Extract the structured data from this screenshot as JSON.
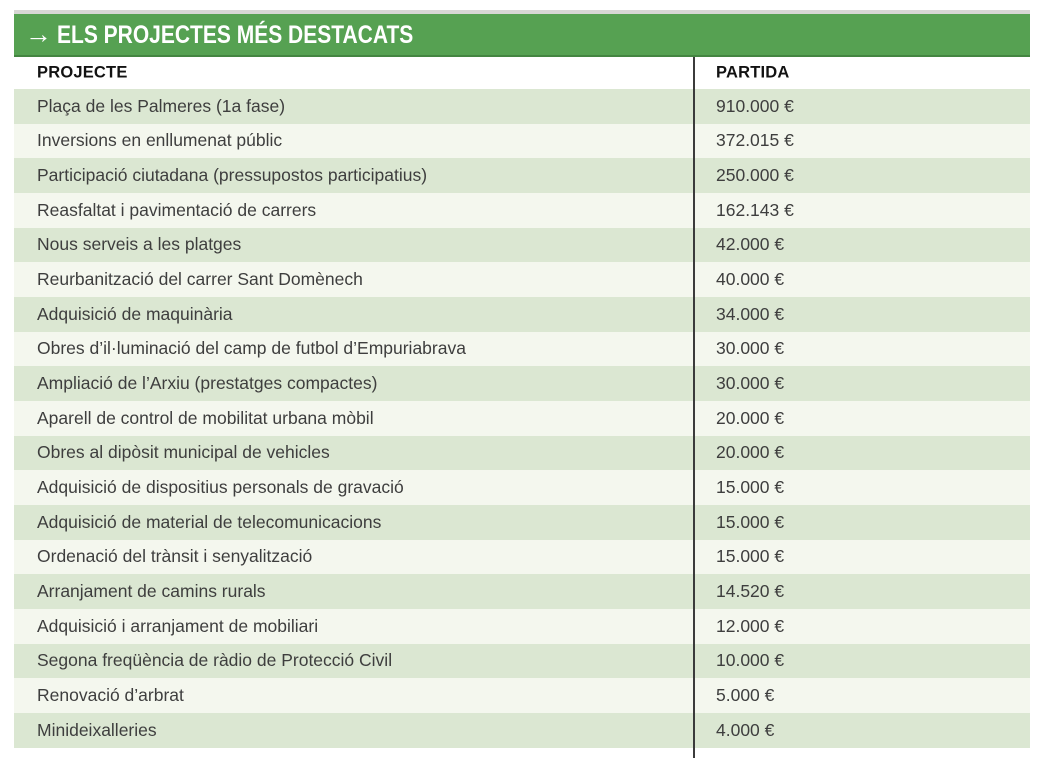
{
  "header": {
    "arrow": "→",
    "title": "ELS PROJECTES MÉS DESTACATS"
  },
  "table": {
    "columns": [
      "PROJECTE",
      "PARTIDA"
    ],
    "rows": [
      {
        "projecte": "Plaça de les Palmeres (1a fase)",
        "partida": "910.000 €"
      },
      {
        "projecte": "Inversions en enllumenat públic",
        "partida": "372.015 €"
      },
      {
        "projecte": "Participació ciutadana (pressupostos participatius)",
        "partida": "250.000 €"
      },
      {
        "projecte": "Reasfaltat i pavimentació de carrers",
        "partida": "162.143 €"
      },
      {
        "projecte": "Nous serveis a les platges",
        "partida": "42.000 €"
      },
      {
        "projecte": "Reurbanització del carrer Sant Domènech",
        "partida": "40.000 €"
      },
      {
        "projecte": "Adquisició de maquinària",
        "partida": "34.000 €"
      },
      {
        "projecte": "Obres d’il·luminació del camp de futbol d’Empuriabrava",
        "partida": "30.000 €"
      },
      {
        "projecte": "Ampliació de l’Arxiu (prestatges compactes)",
        "partida": "30.000 €"
      },
      {
        "projecte": "Aparell de control de mobilitat urbana mòbil",
        "partida": "20.000 €"
      },
      {
        "projecte": "Obres al dipòsit municipal de vehicles",
        "partida": "20.000 €"
      },
      {
        "projecte": "Adquisició de dispositius personals de gravació",
        "partida": "15.000 €"
      },
      {
        "projecte": "Adquisició de material de telecomunicacions",
        "partida": "15.000 €"
      },
      {
        "projecte": "Ordenació del trànsit i senyalització",
        "partida": "15.000 €"
      },
      {
        "projecte": "Arranjament de camins rurals",
        "partida": "14.520 €"
      },
      {
        "projecte": "Adquisició i arranjament de mobiliari",
        "partida": "12.000 €"
      },
      {
        "projecte": "Segona freqüència de ràdio de Protecció Civil",
        "partida": "10.000 €"
      },
      {
        "projecte": "Renovació d’arbrat",
        "partida": "5.000 €"
      },
      {
        "projecte": "Minideixalleries",
        "partida": "4.000 €"
      }
    ]
  },
  "colors": {
    "title_bar_green": "#56a152",
    "title_text": "#ffffff",
    "row_green": "#dbe7d2",
    "row_light": "#f4f7ee",
    "divider": "#3b3b3b",
    "top_strip": "#d7d7d4",
    "body_text": "#3e3e3e",
    "column_header_text": "#121212"
  }
}
